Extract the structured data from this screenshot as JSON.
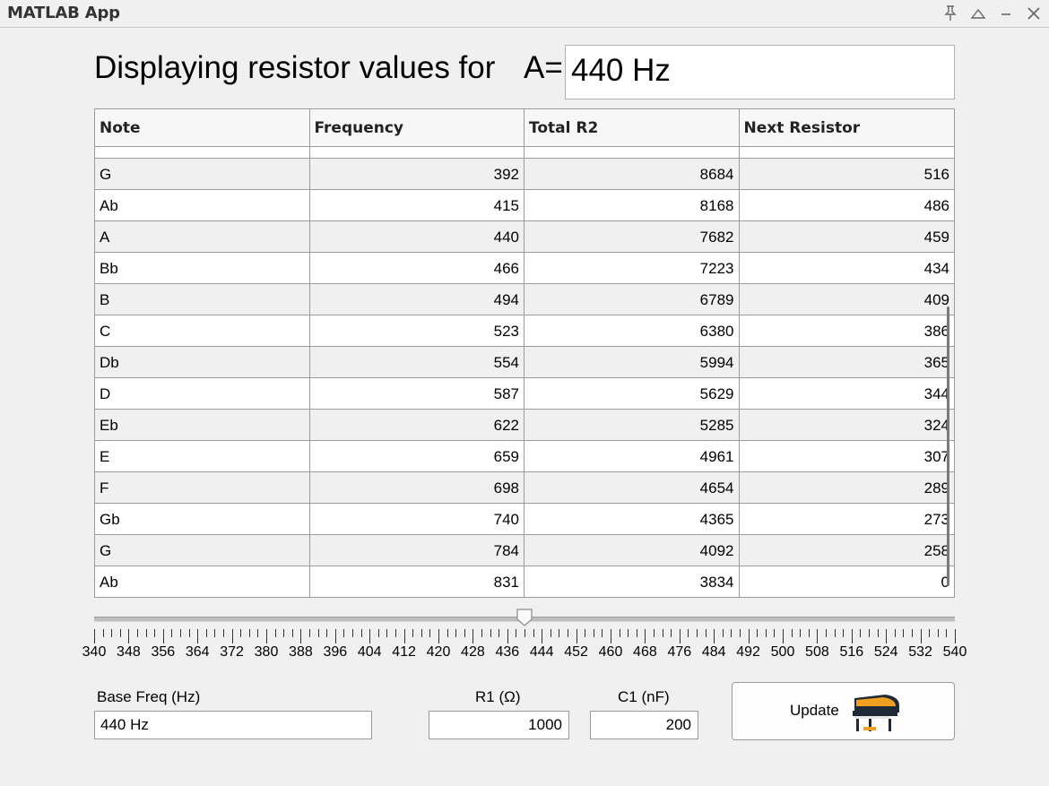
{
  "window": {
    "title": "MATLAB App"
  },
  "title_controls": [
    {
      "name": "pin-icon",
      "glyph": "📌"
    },
    {
      "name": "collapse-icon",
      "glyph": "△"
    },
    {
      "name": "minimize-icon",
      "glyph": "–"
    },
    {
      "name": "close-icon",
      "glyph": "✕"
    }
  ],
  "heading": {
    "text": "Displaying resistor values for",
    "a_label": "A=",
    "freq_value": "440 Hz"
  },
  "table": {
    "columns": [
      "Note",
      "Frequency",
      "Total R2",
      "Next Resistor"
    ],
    "rows": [
      [
        "G",
        "392",
        "8684",
        "516"
      ],
      [
        "Ab",
        "415",
        "8168",
        "486"
      ],
      [
        "A",
        "440",
        "7682",
        "459"
      ],
      [
        "Bb",
        "466",
        "7223",
        "434"
      ],
      [
        "B",
        "494",
        "6789",
        "409"
      ],
      [
        "C",
        "523",
        "6380",
        "386"
      ],
      [
        "Db",
        "554",
        "5994",
        "365"
      ],
      [
        "D",
        "587",
        "5629",
        "344"
      ],
      [
        "Eb",
        "622",
        "5285",
        "324"
      ],
      [
        "E",
        "659",
        "4961",
        "307"
      ],
      [
        "F",
        "698",
        "4654",
        "289"
      ],
      [
        "Gb",
        "740",
        "4365",
        "273"
      ],
      [
        "G",
        "784",
        "4092",
        "258"
      ],
      [
        "Ab",
        "831",
        "3834",
        "0"
      ]
    ]
  },
  "slider": {
    "min": 340,
    "max": 540,
    "value": 440,
    "major_step": 8,
    "minor_step": 2,
    "tick_labels": [
      "340",
      "348",
      "356",
      "364",
      "372",
      "380",
      "388",
      "396",
      "404",
      "412",
      "420",
      "428",
      "436",
      "444",
      "452",
      "460",
      "468",
      "476",
      "484",
      "492",
      "500",
      "508",
      "516",
      "524",
      "532",
      "540"
    ]
  },
  "controls": {
    "base_freq_label": "Base Freq (Hz)",
    "base_freq_value": "440 Hz",
    "r1_label": "R1 (Ω)",
    "r1_value": "1000",
    "c1_label": "C1 (nF)",
    "c1_value": "200",
    "update_label": "Update",
    "update_icon": "piano-icon"
  },
  "colors": {
    "piano_body": "#1f2a36",
    "piano_accent": "#f0a020"
  }
}
